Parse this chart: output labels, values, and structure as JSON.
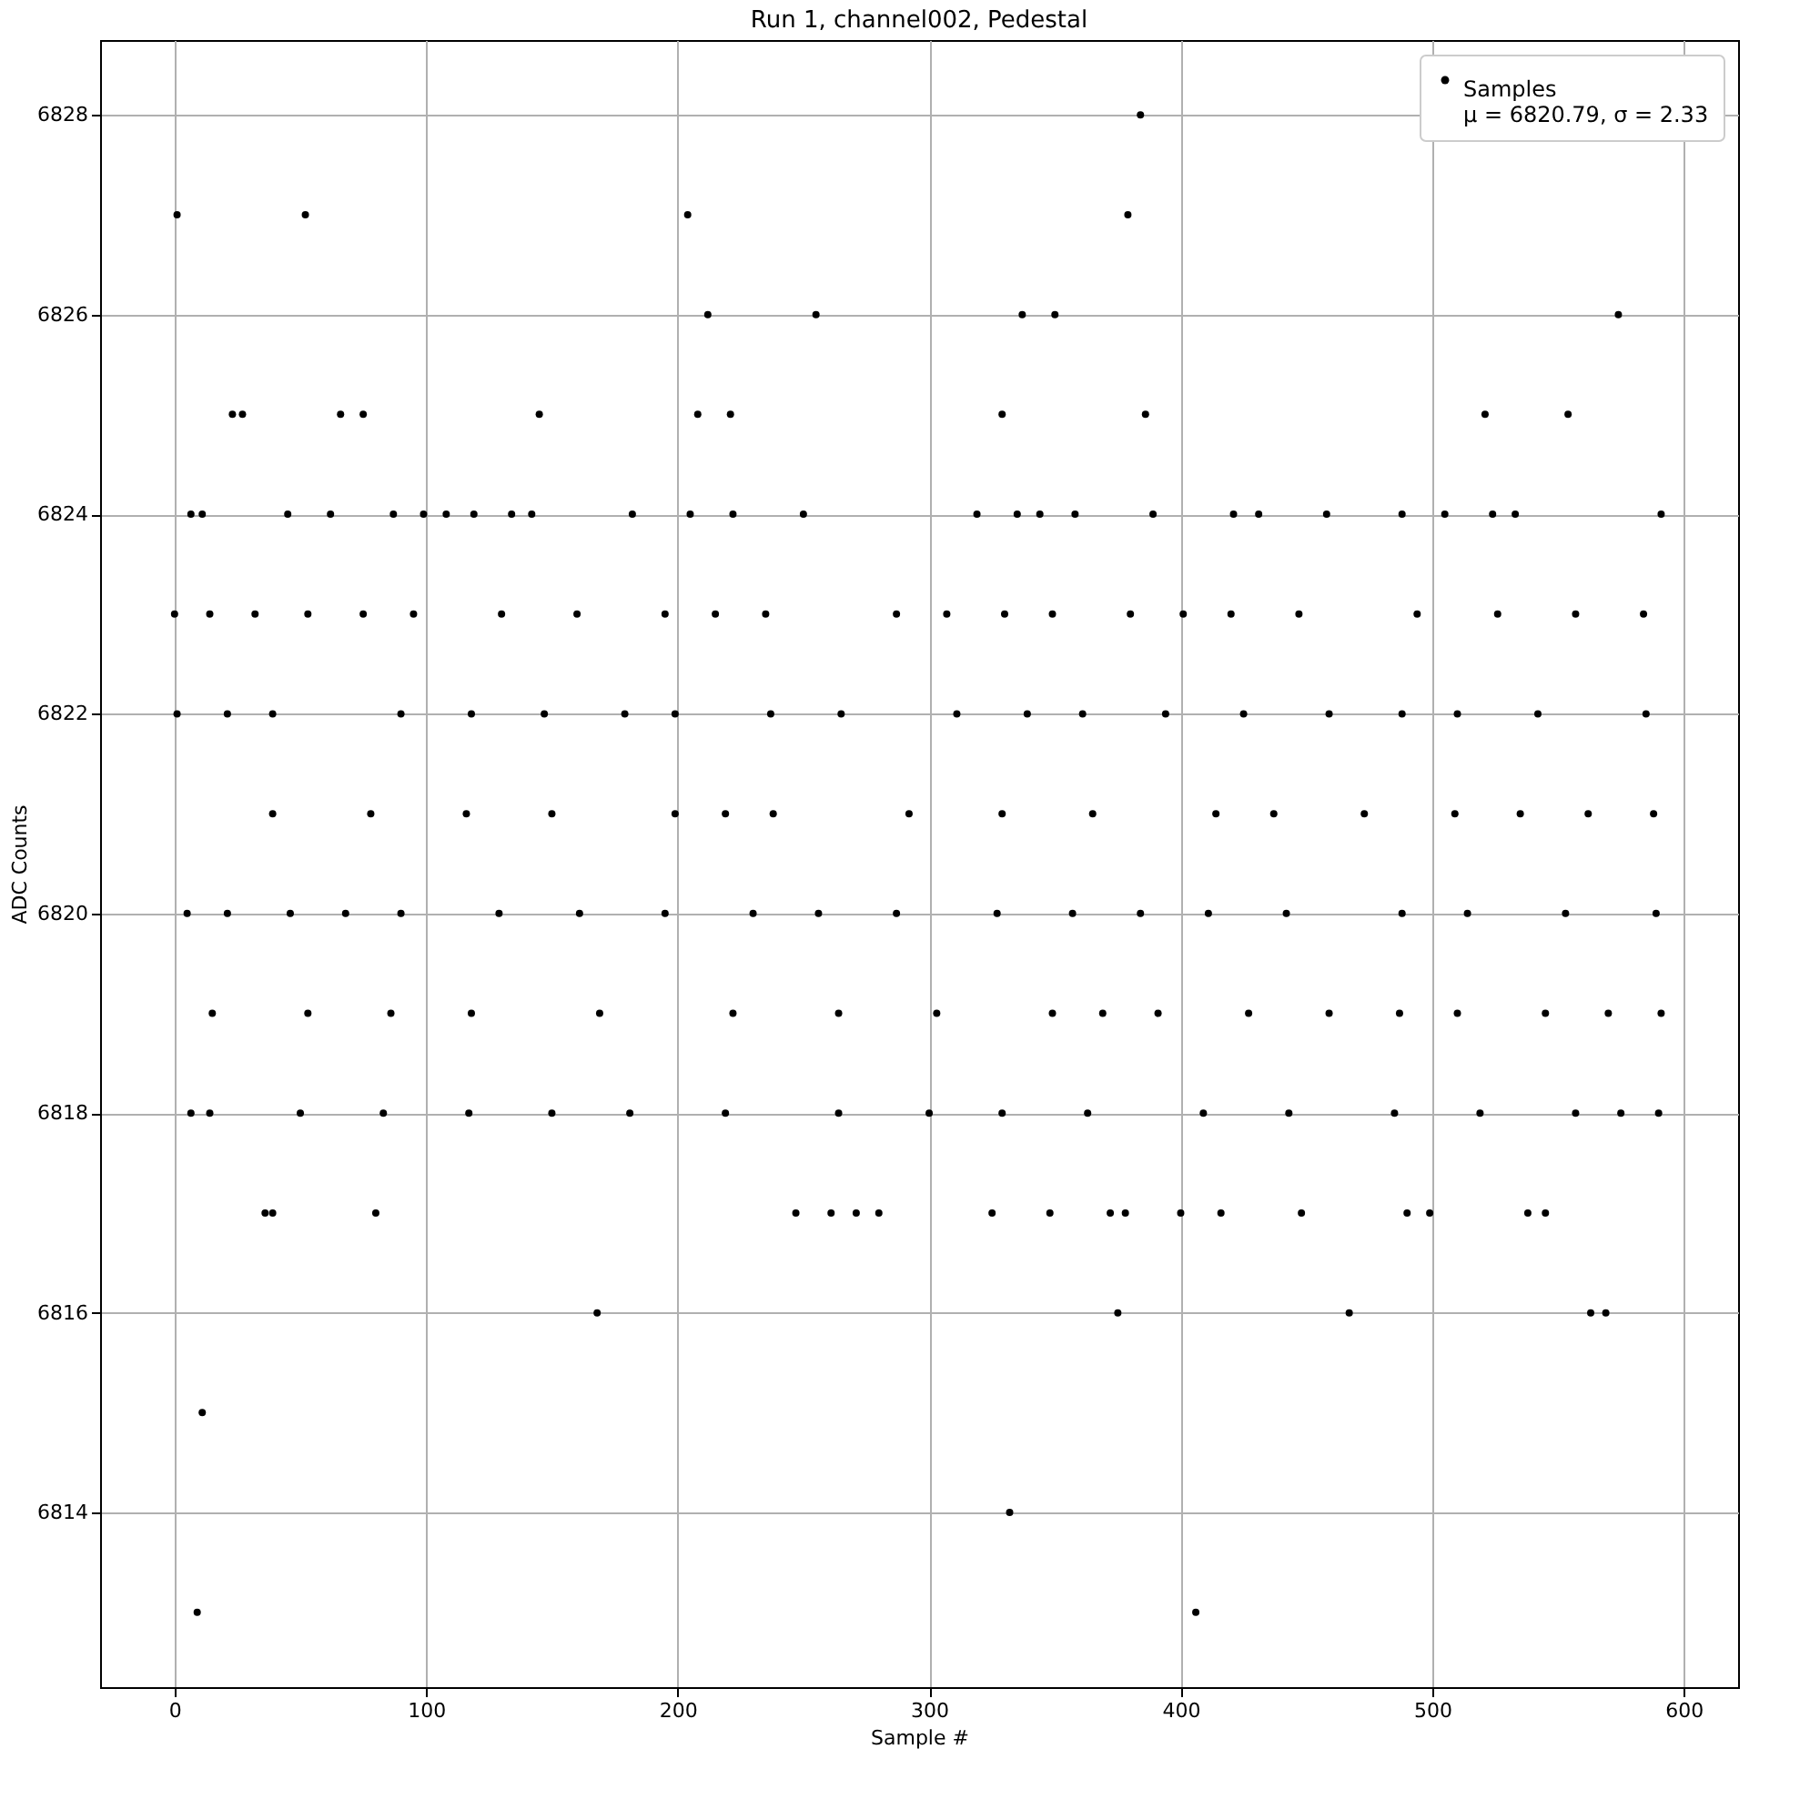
{
  "chart_data": {
    "type": "scatter",
    "title": "Run 1, channel002, Pedestal",
    "xlabel": "Sample #",
    "ylabel": "ADC Counts",
    "xlim": [
      -29.6,
      621.6
    ],
    "ylim": [
      6812.25,
      6828.75
    ],
    "xticks": [
      0,
      100,
      200,
      300,
      400,
      500,
      600
    ],
    "yticks": [
      6814,
      6816,
      6818,
      6820,
      6822,
      6824,
      6826,
      6828
    ],
    "grid": true,
    "legend": "top right",
    "marker": "circle",
    "series": [
      {
        "name": "Samples\nμ = 6820.79, σ = 2.33",
        "color": "#000000",
        "x": [
          1,
          9,
          11,
          52,
          204,
          212,
          255,
          337,
          350,
          379,
          384,
          332,
          406,
          168,
          375,
          467,
          563,
          569,
          574,
          23,
          27,
          66,
          75,
          145,
          221,
          208,
          329,
          386,
          521,
          554,
          6.5,
          11,
          45,
          62,
          87,
          99,
          108,
          119,
          134,
          142,
          182,
          205,
          222,
          250,
          319,
          335,
          344,
          358,
          389,
          421,
          431,
          458,
          488,
          505,
          524,
          533,
          591,
          36,
          39,
          80,
          247,
          261,
          271,
          280,
          325,
          348,
          372,
          378,
          400,
          416,
          448,
          490,
          499,
          538,
          545,
          0,
          14,
          32,
          53,
          75,
          95,
          130,
          160,
          195,
          215,
          235,
          287,
          307,
          330,
          349,
          380,
          401,
          420,
          447,
          494,
          526,
          557,
          584,
          1,
          21,
          39,
          90,
          118,
          147,
          179,
          199,
          237,
          265,
          311,
          339,
          361,
          394,
          425,
          459,
          488,
          510,
          542,
          585,
          39,
          78,
          116,
          150,
          199,
          219,
          238,
          292,
          329,
          365,
          414,
          437,
          473,
          509,
          535,
          562,
          588,
          5,
          21,
          46,
          68,
          90,
          129,
          161,
          195,
          230,
          256,
          287,
          327,
          357,
          384,
          411,
          442,
          488,
          514,
          553,
          589,
          15,
          53,
          86,
          118,
          169,
          222,
          264,
          303,
          349,
          369,
          391,
          427,
          459,
          487,
          510,
          545,
          570,
          591,
          6.5,
          14,
          50,
          83,
          117,
          150,
          181,
          219,
          264,
          300,
          329,
          363,
          409,
          443,
          485,
          519,
          557,
          575,
          590
        ],
        "values": [
          6827,
          6813,
          6815,
          6827,
          6827,
          6826,
          6826,
          6826,
          6826,
          6827,
          6828,
          6814,
          6813,
          6816,
          6816,
          6816,
          6816,
          6816,
          6826,
          6825,
          6825,
          6825,
          6825,
          6825,
          6825,
          6825,
          6825,
          6825,
          6825,
          6825,
          6824,
          6824,
          6824,
          6824,
          6824,
          6824,
          6824,
          6824,
          6824,
          6824,
          6824,
          6824,
          6824,
          6824,
          6824,
          6824,
          6824,
          6824,
          6824,
          6824,
          6824,
          6824,
          6824,
          6824,
          6824,
          6824,
          6824,
          6817,
          6817,
          6817,
          6817,
          6817,
          6817,
          6817,
          6817,
          6817,
          6817,
          6817,
          6817,
          6817,
          6817,
          6817,
          6817,
          6817,
          6817,
          6823,
          6823,
          6823,
          6823,
          6823,
          6823,
          6823,
          6823,
          6823,
          6823,
          6823,
          6823,
          6823,
          6823,
          6823,
          6823,
          6823,
          6823,
          6823,
          6823,
          6823,
          6823,
          6823,
          6822,
          6822,
          6822,
          6822,
          6822,
          6822,
          6822,
          6822,
          6822,
          6822,
          6822,
          6822,
          6822,
          6822,
          6822,
          6822,
          6822,
          6822,
          6822,
          6822,
          6821,
          6821,
          6821,
          6821,
          6821,
          6821,
          6821,
          6821,
          6821,
          6821,
          6821,
          6821,
          6821,
          6821,
          6821,
          6821,
          6821,
          6820,
          6820,
          6820,
          6820,
          6820,
          6820,
          6820,
          6820,
          6820,
          6820,
          6820,
          6820,
          6820,
          6820,
          6820,
          6820,
          6820,
          6820,
          6820,
          6820,
          6819,
          6819,
          6819,
          6819,
          6819,
          6819,
          6819,
          6819,
          6819,
          6819,
          6819,
          6819,
          6819,
          6819,
          6819,
          6819,
          6819,
          6819,
          6818,
          6818,
          6818,
          6818,
          6818,
          6818,
          6818,
          6818,
          6818,
          6818,
          6818,
          6818,
          6818,
          6818,
          6818,
          6818,
          6818,
          6818,
          6818
        ]
      }
    ]
  }
}
